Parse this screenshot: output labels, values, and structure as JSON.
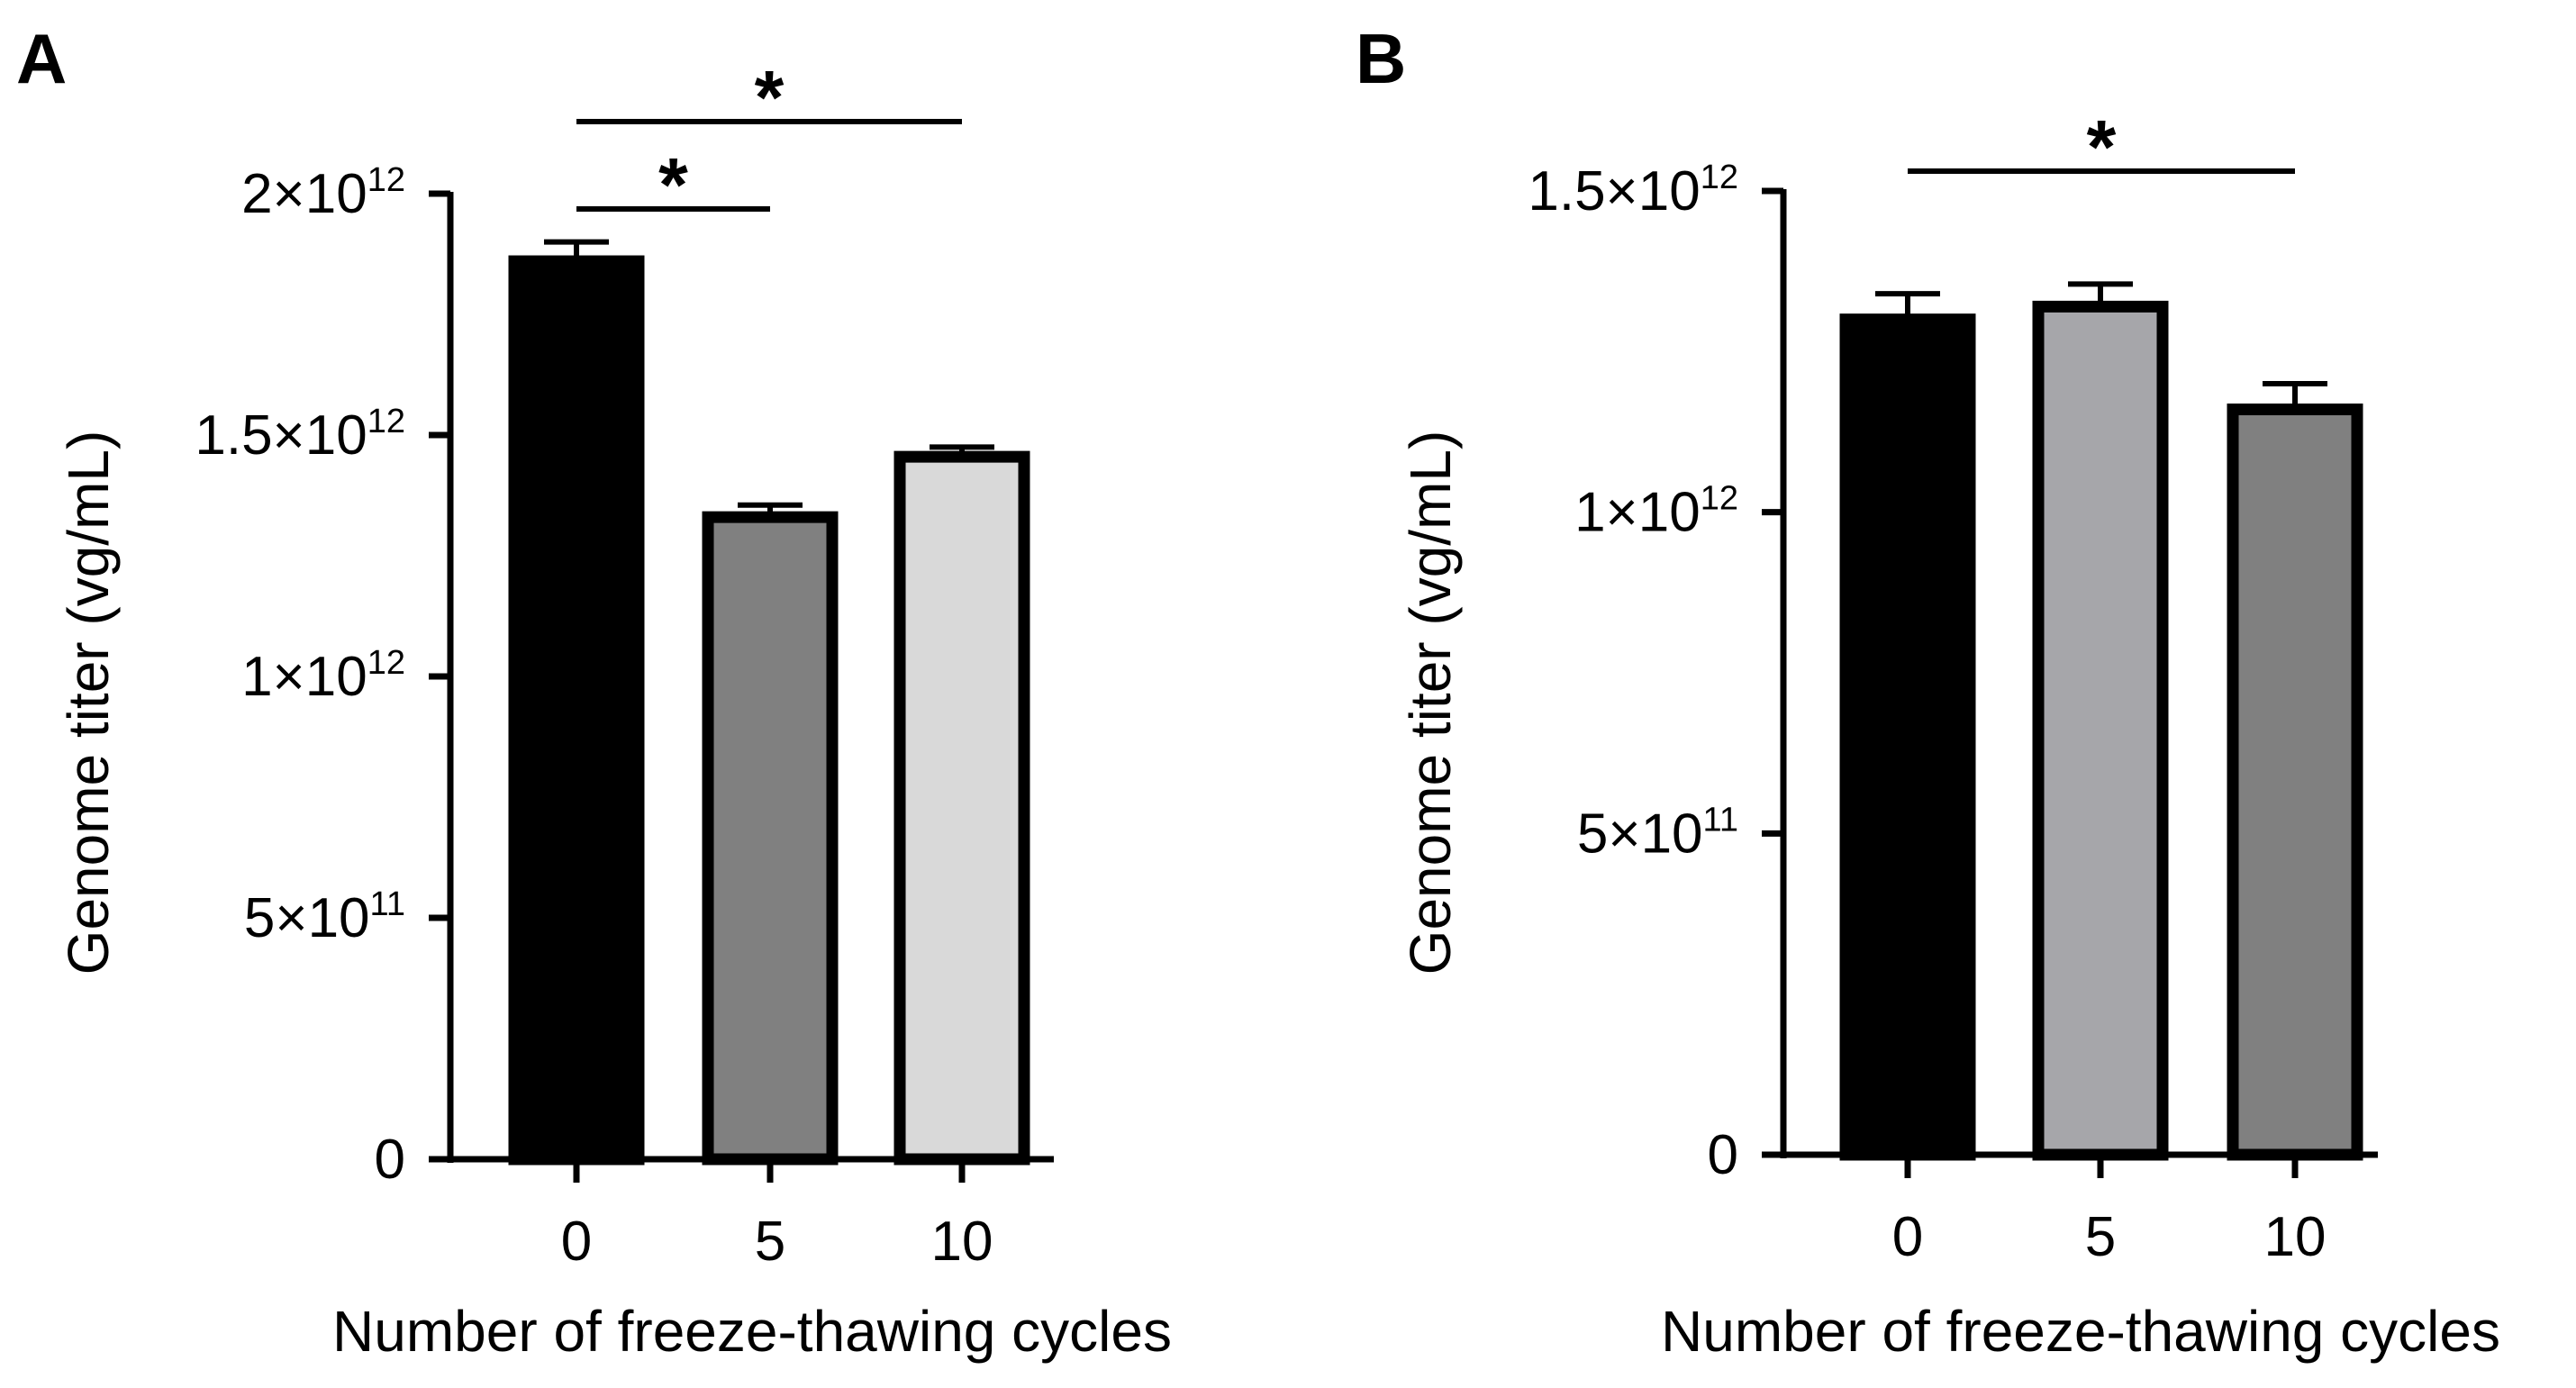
{
  "figure": {
    "panels": [
      "A",
      "B"
    ]
  },
  "chart_data": [
    {
      "panel": "A",
      "type": "bar",
      "categories": [
        "0",
        "5",
        "10"
      ],
      "values": [
        1860000000000.0,
        1330000000000.0,
        1455000000000.0
      ],
      "errors": [
        40000000000.0,
        25000000000.0,
        20000000000.0
      ],
      "colors": [
        "#000000",
        "#808080",
        "#d9d9d9"
      ],
      "xlabel": "Number of freeze-thawing cycles",
      "ylabel": "Genome titer (vg/mL)",
      "ylim": [
        0,
        2000000000000.0
      ],
      "yticks": [
        {
          "value": 0,
          "mantissa": "0",
          "exponent": ""
        },
        {
          "value": 500000000000.0,
          "mantissa": "5×10",
          "exponent": "11"
        },
        {
          "value": 1000000000000.0,
          "mantissa": "1×10",
          "exponent": "12"
        },
        {
          "value": 1500000000000.0,
          "mantissa": "1.5×10",
          "exponent": "12"
        },
        {
          "value": 2000000000000.0,
          "mantissa": "2×10",
          "exponent": "12"
        }
      ],
      "significance": [
        {
          "from": 0,
          "to": 2,
          "label": "*"
        },
        {
          "from": 0,
          "to": 1,
          "label": "*"
        }
      ],
      "grid": false
    },
    {
      "panel": "B",
      "type": "bar",
      "categories": [
        "0",
        "5",
        "10"
      ],
      "values": [
        1300000000000.0,
        1320000000000.0,
        1160000000000.0
      ],
      "errors": [
        40000000000.0,
        35000000000.0,
        40000000000.0
      ],
      "colors": [
        "#000000",
        "#a6a6aa",
        "#808080"
      ],
      "xlabel": "Number of freeze-thawing cycles",
      "ylabel": "Genome titer (vg/mL)",
      "ylim": [
        0,
        1500000000000.0
      ],
      "yticks": [
        {
          "value": 0,
          "mantissa": "0",
          "exponent": ""
        },
        {
          "value": 500000000000.0,
          "mantissa": "5×10",
          "exponent": "11"
        },
        {
          "value": 1000000000000.0,
          "mantissa": "1×10",
          "exponent": "12"
        },
        {
          "value": 1500000000000.0,
          "mantissa": "1.5×10",
          "exponent": "12"
        }
      ],
      "significance": [
        {
          "from": 0,
          "to": 2,
          "label": "*"
        }
      ],
      "grid": false
    }
  ]
}
